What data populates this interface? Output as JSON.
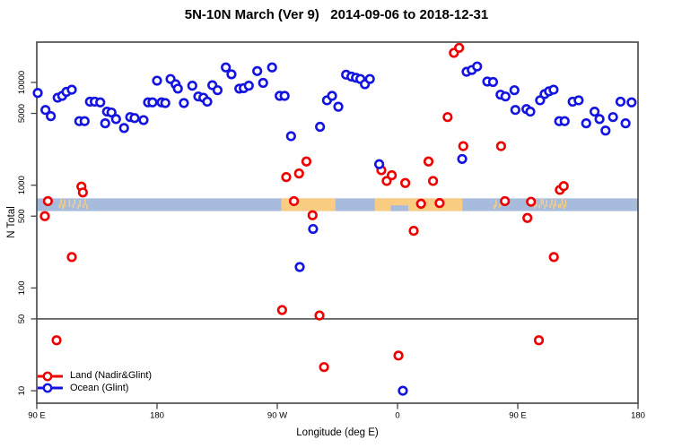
{
  "title": "5N-10N March (Ver 9)   2014-09-06 to 2018-12-31",
  "legend": {
    "items": [
      {
        "label": "Land (Nadir&Glint)",
        "color": "#ee0000"
      },
      {
        "label": "Ocean (Glint)",
        "color": "#1414e0"
      }
    ]
  },
  "chart_data": {
    "type": "scatter",
    "title": "5N-10N March (Ver 9)   2014-09-06 to 2018-12-31",
    "xlabel": "Longitude (deg E)",
    "ylabel": "N Total",
    "x_range": [
      90,
      540
    ],
    "x_axis_ticks": [
      {
        "pos": 90,
        "label": "90 E"
      },
      {
        "pos": 180,
        "label": "180"
      },
      {
        "pos": 270,
        "label": "90 W"
      },
      {
        "pos": 360,
        "label": "0"
      },
      {
        "pos": 450,
        "label": "90 E"
      },
      {
        "pos": 540,
        "label": "180"
      }
    ],
    "y_scale": "log",
    "y_range": [
      7.6,
      24700
    ],
    "y_ticks": [
      {
        "value": 10,
        "label": "10"
      },
      {
        "value": 50,
        "label": "50"
      },
      {
        "value": 100,
        "label": "100"
      },
      {
        "value": 500,
        "label": "500"
      },
      {
        "value": 1000,
        "label": "1000"
      },
      {
        "value": 5000,
        "label": "5000"
      },
      {
        "value": 10000,
        "label": "10000"
      }
    ],
    "threshold_line_y": 50,
    "grid": false,
    "legend_position": "bottom-left",
    "map_band": {
      "value_range": [
        560,
        745
      ],
      "ocean_color": "#a7bcdc",
      "land_color": "#f8cd82",
      "land_patches": [
        {
          "from": 106.5,
          "to": 112.5,
          "style": "speckle"
        },
        {
          "from": 114.0,
          "to": 119.0,
          "style": "speckle"
        },
        {
          "from": 120.5,
          "to": 127.5,
          "style": "speckle"
        },
        {
          "from": 273.0,
          "to": 313.5,
          "style": "solid"
        },
        {
          "from": 343.0,
          "to": 408.5,
          "style": "solid"
        },
        {
          "from": 432.0,
          "to": 439.0,
          "style": "speckle"
        },
        {
          "from": 462.0,
          "to": 488.0,
          "style": "speckle"
        }
      ],
      "ocean_notches": [
        {
          "from": 355,
          "to": 368
        }
      ]
    },
    "series": [
      {
        "name": "Land (Nadir&Glint)",
        "color": "#ee0000",
        "points": [
          [
            96.0,
            500
          ],
          [
            98.3,
            700
          ],
          [
            104.8,
            31
          ],
          [
            116.2,
            200
          ],
          [
            123.4,
            970
          ],
          [
            124.5,
            850
          ],
          [
            273.6,
            61
          ],
          [
            276.7,
            1200
          ],
          [
            282.5,
            700
          ],
          [
            286.3,
            1300
          ],
          [
            291.8,
            1700
          ],
          [
            296.4,
            510
          ],
          [
            301.6,
            54
          ],
          [
            305.0,
            17
          ],
          [
            347.9,
            1400
          ],
          [
            351.9,
            1100
          ],
          [
            355.7,
            1250
          ],
          [
            360.7,
            22
          ],
          [
            365.8,
            1050
          ],
          [
            372.1,
            360
          ],
          [
            377.6,
            660
          ],
          [
            383.2,
            1700
          ],
          [
            386.6,
            1100
          ],
          [
            391.5,
            670
          ],
          [
            397.5,
            4600
          ],
          [
            402.2,
            19400
          ],
          [
            406.1,
            21700
          ],
          [
            409.2,
            2400
          ],
          [
            437.5,
            2400
          ],
          [
            440.4,
            700
          ],
          [
            457.2,
            480
          ],
          [
            459.9,
            690
          ],
          [
            465.8,
            31
          ],
          [
            477.0,
            200
          ],
          [
            481.5,
            900
          ],
          [
            484.4,
            980
          ]
        ]
      },
      {
        "name": "Ocean (Glint)",
        "color": "#1414e0",
        "points": [
          [
            90.7,
            7900
          ],
          [
            96.5,
            5400
          ],
          [
            100.5,
            4700
          ],
          [
            105.6,
            7100
          ],
          [
            109.0,
            7400
          ],
          [
            112.2,
            8100
          ],
          [
            116.2,
            8500
          ],
          [
            121.8,
            4200
          ],
          [
            125.8,
            4200
          ],
          [
            129.8,
            6500
          ],
          [
            133.4,
            6500
          ],
          [
            137.5,
            6400
          ],
          [
            141.2,
            4000
          ],
          [
            142.6,
            5200
          ],
          [
            145.9,
            5100
          ],
          [
            149.3,
            4400
          ],
          [
            155.3,
            3600
          ],
          [
            159.9,
            4600
          ],
          [
            163.2,
            4500
          ],
          [
            169.9,
            4300
          ],
          [
            173.3,
            6400
          ],
          [
            176.6,
            6400
          ],
          [
            180.0,
            10400
          ],
          [
            183.4,
            6400
          ],
          [
            186.2,
            6300
          ],
          [
            190.1,
            10800
          ],
          [
            193.9,
            9600
          ],
          [
            195.6,
            8700
          ],
          [
            200.1,
            6300
          ],
          [
            206.4,
            9300
          ],
          [
            210.9,
            7300
          ],
          [
            214.7,
            7100
          ],
          [
            217.6,
            6500
          ],
          [
            221.4,
            9400
          ],
          [
            225.3,
            8400
          ],
          [
            231.5,
            14000
          ],
          [
            235.7,
            12000
          ],
          [
            241.6,
            8700
          ],
          [
            244.9,
            8800
          ],
          [
            248.7,
            9300
          ],
          [
            255.0,
            12900
          ],
          [
            259.4,
            9900
          ],
          [
            266.1,
            14000
          ],
          [
            271.8,
            7400
          ],
          [
            275.5,
            7400
          ],
          [
            280.3,
            3000
          ],
          [
            286.8,
            160
          ],
          [
            296.8,
            375
          ],
          [
            302.0,
            3700
          ],
          [
            307.2,
            6700
          ],
          [
            311.0,
            7400
          ],
          [
            315.7,
            5800
          ],
          [
            321.5,
            11900
          ],
          [
            325.5,
            11400
          ],
          [
            328.9,
            11100
          ],
          [
            332.2,
            10800
          ],
          [
            335.6,
            9600
          ],
          [
            339.3,
            10800
          ],
          [
            346.3,
            1600
          ],
          [
            364.0,
            10
          ],
          [
            408.4,
            1800
          ],
          [
            411.7,
            12700
          ],
          [
            415.6,
            13200
          ],
          [
            419.6,
            14300
          ],
          [
            427.2,
            10200
          ],
          [
            431.5,
            10100
          ],
          [
            437.1,
            7600
          ],
          [
            440.8,
            7300
          ],
          [
            447.5,
            8400
          ],
          [
            448.2,
            5400
          ],
          [
            456.5,
            5500
          ],
          [
            459.4,
            5200
          ],
          [
            466.7,
            6700
          ],
          [
            470.1,
            7700
          ],
          [
            473.4,
            8200
          ],
          [
            476.8,
            8500
          ],
          [
            481.0,
            4200
          ],
          [
            485.1,
            4200
          ],
          [
            491.1,
            6500
          ],
          [
            495.6,
            6700
          ],
          [
            501.2,
            4000
          ],
          [
            507.5,
            5200
          ],
          [
            511.2,
            4400
          ],
          [
            515.7,
            3400
          ],
          [
            521.3,
            4600
          ],
          [
            526.9,
            6500
          ],
          [
            530.7,
            4000
          ],
          [
            535.2,
            6400
          ]
        ]
      }
    ]
  }
}
